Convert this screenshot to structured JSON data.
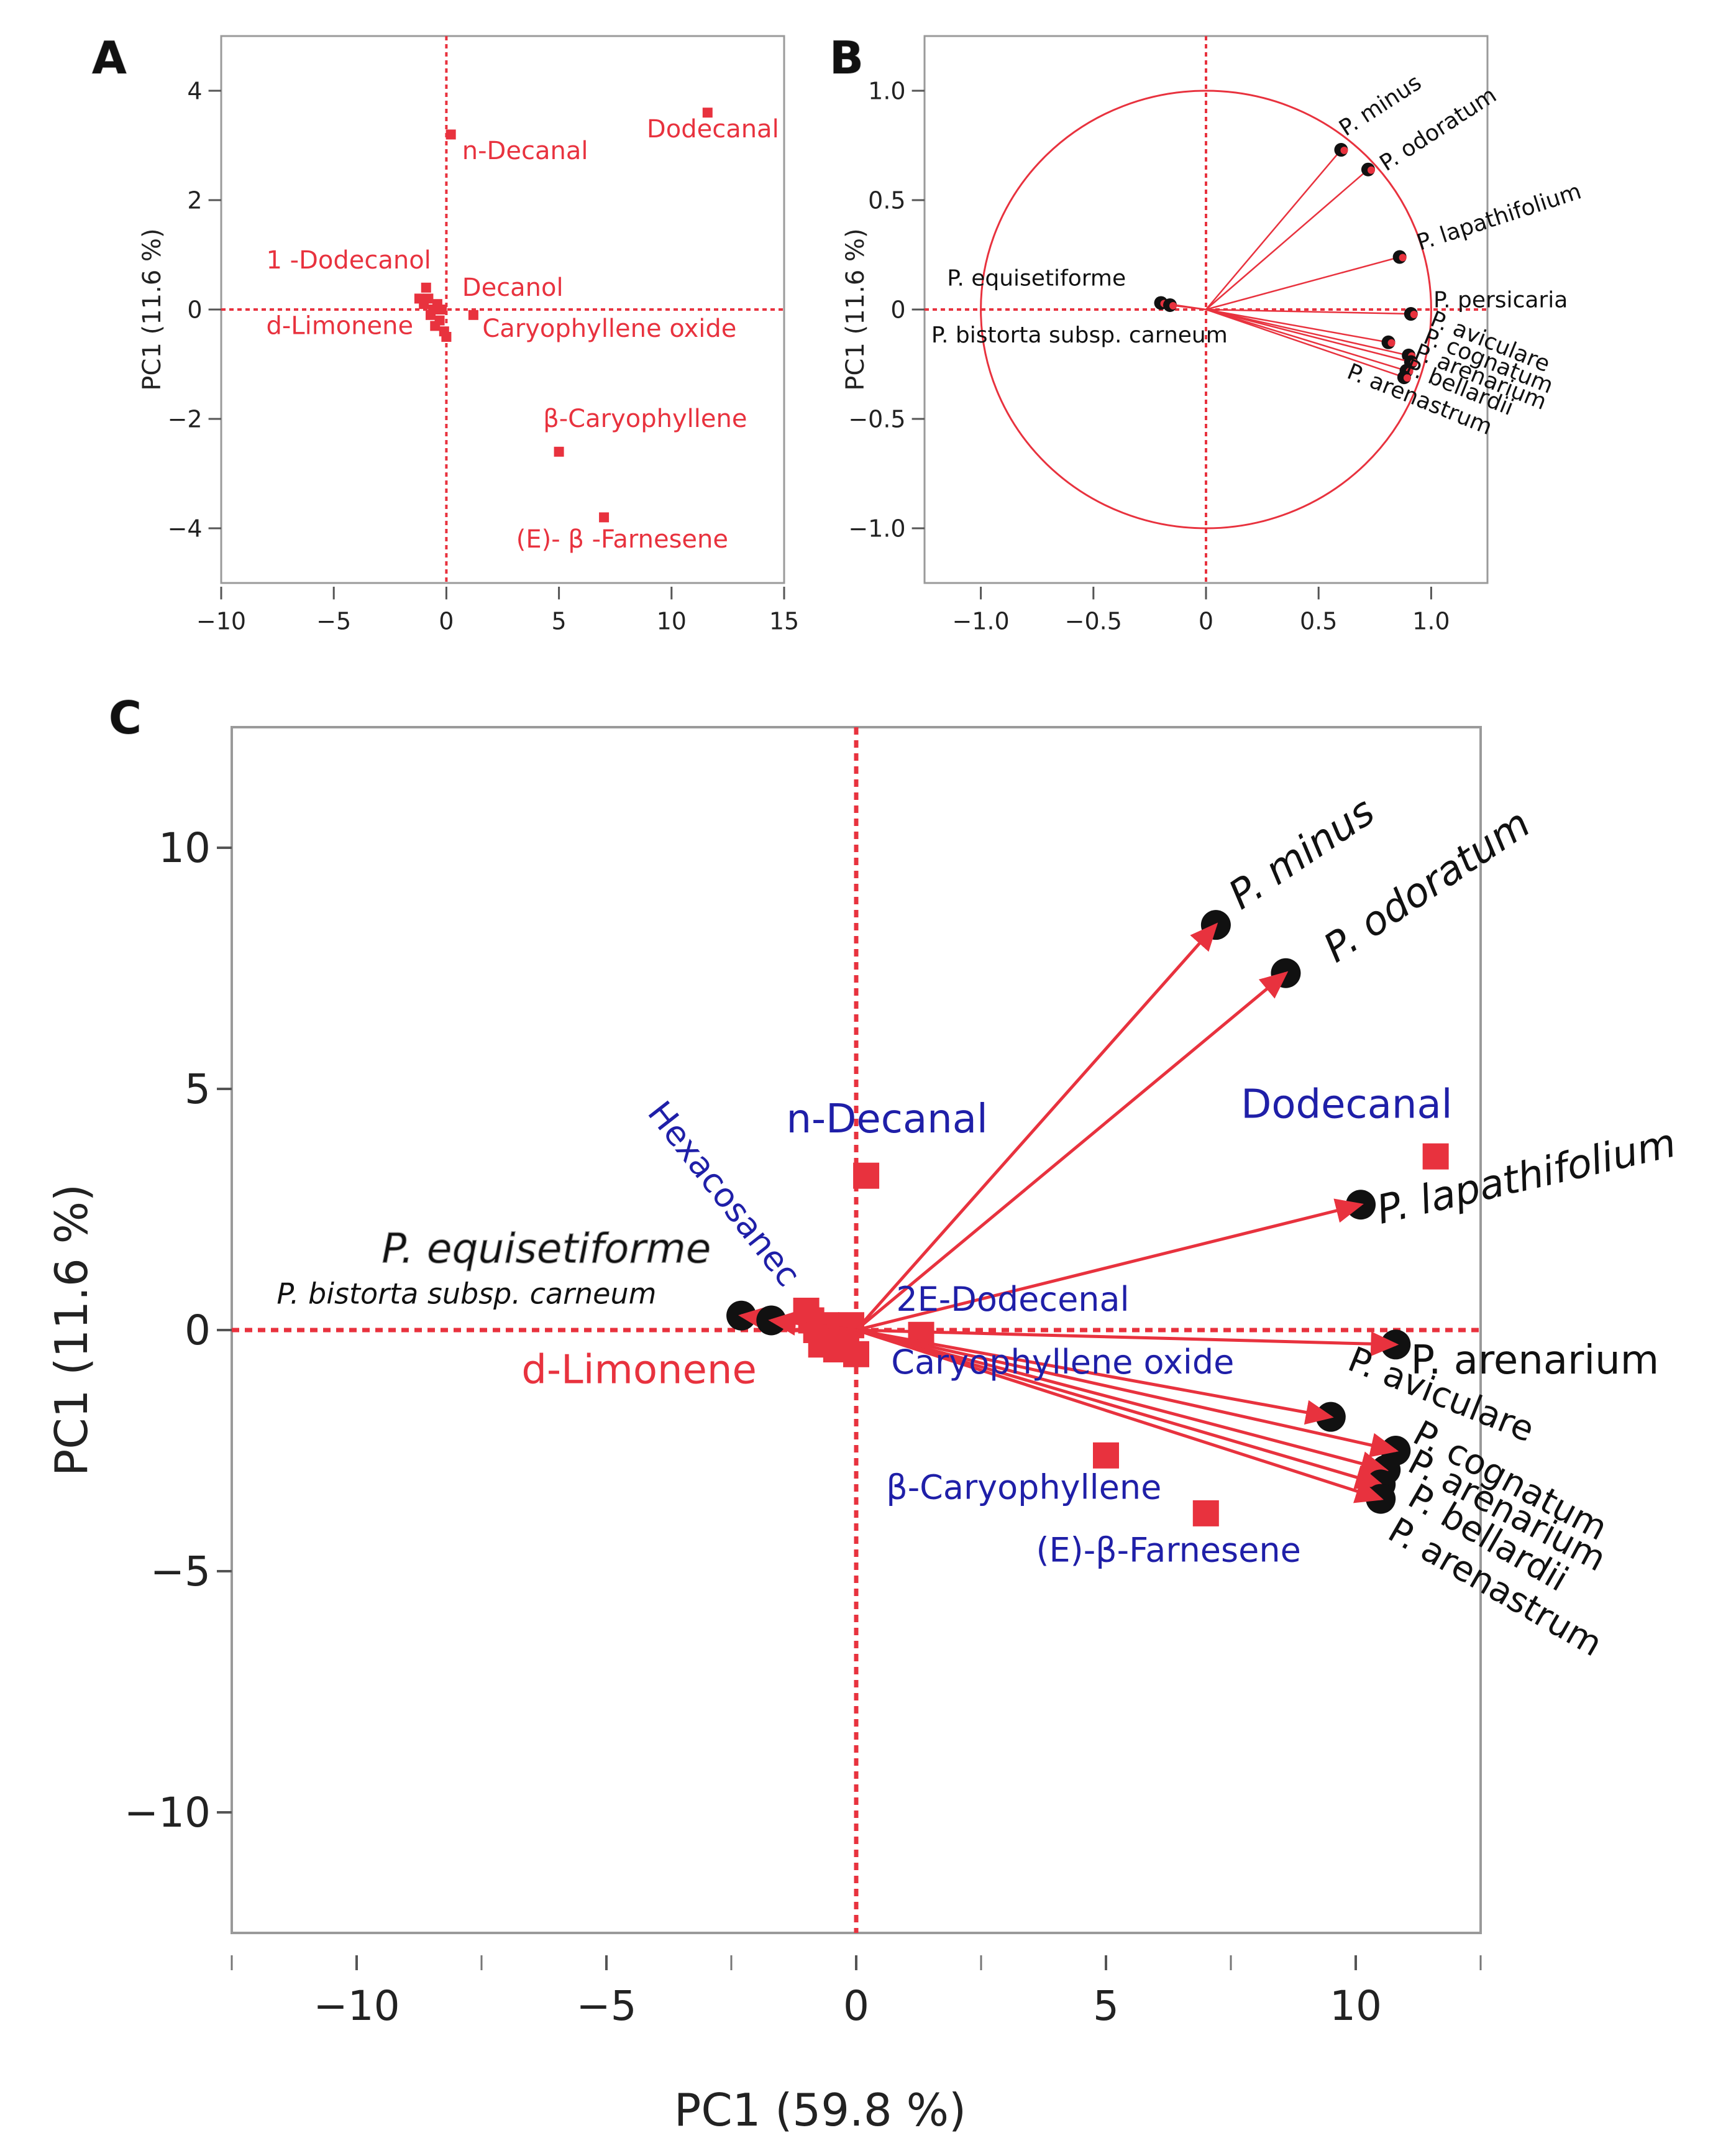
{
  "colors": {
    "accent": "#e8323e",
    "blue": "#1f1fa8",
    "black": "#111111",
    "frame": "#9a9a9a"
  },
  "panels": {
    "A": {
      "letter": "A",
      "ylabel": "PC1  (11.6 %)"
    },
    "B": {
      "letter": "B",
      "ylabel": "PC1  (11.6 %)"
    },
    "C": {
      "letter": "C",
      "ylabel": "PC1  (11.6 %)",
      "xlabel": "PC1  (59.8 %)"
    }
  },
  "chart_data": [
    {
      "id": "A",
      "type": "scatter",
      "title": "",
      "xlabel": "",
      "ylabel": "PC1  (11.6 %)",
      "xlim": [
        -10,
        15
      ],
      "ylim": [
        -5,
        5
      ],
      "xticks": [
        -10,
        -5,
        0,
        5,
        10,
        15
      ],
      "xtick_labels": [
        "−10",
        "−5",
        "0",
        "5",
        "10",
        "15"
      ],
      "yticks": [
        -4,
        -2,
        0,
        2,
        4
      ],
      "ytick_labels": [
        "−4",
        "−2",
        "0",
        "2",
        "4"
      ],
      "points": [
        {
          "label": "Dodecanal",
          "x": 11.6,
          "y": 3.6
        },
        {
          "label": "n-Decanal",
          "x": 0.2,
          "y": 3.2
        },
        {
          "label": "β-Caryophyllene",
          "x": 5.0,
          "y": -2.6
        },
        {
          "label": "(E)- β -Farnesene",
          "x": 7.0,
          "y": -3.8
        },
        {
          "label": "Caryophyllene oxide",
          "x": 1.2,
          "y": -0.1
        },
        {
          "label": "",
          "x": -1.2,
          "y": 0.2
        },
        {
          "label": "",
          "x": -1.0,
          "y": 0.1
        },
        {
          "label": "",
          "x": -0.9,
          "y": 0.4
        },
        {
          "label": "",
          "x": -0.8,
          "y": 0.2
        },
        {
          "label": "",
          "x": -0.7,
          "y": -0.1
        },
        {
          "label": "",
          "x": -0.6,
          "y": 0.0
        },
        {
          "label": "",
          "x": -0.5,
          "y": -0.3
        },
        {
          "label": "",
          "x": -0.4,
          "y": 0.1
        },
        {
          "label": "",
          "x": -0.3,
          "y": -0.2
        },
        {
          "label": "",
          "x": -0.2,
          "y": 0.0
        },
        {
          "label": "",
          "x": -0.1,
          "y": -0.4
        },
        {
          "label": "",
          "x": 0.0,
          "y": -0.5
        }
      ],
      "labels": [
        {
          "text": "Dodecanal",
          "x": 8.9,
          "y": 3.15
        },
        {
          "text": "n-Decanal",
          "x": 0.7,
          "y": 2.75
        },
        {
          "text": "1 -Dodecanol",
          "x": -8.0,
          "y": 0.75
        },
        {
          "text": "Decanol",
          "x": 0.7,
          "y": 0.25
        },
        {
          "text": "d-Limonene",
          "x": -8.0,
          "y": -0.45
        },
        {
          "text": "Caryophyllene oxide",
          "x": 1.6,
          "y": -0.5
        },
        {
          "text": "β-Caryophyllene",
          "x": 4.3,
          "y": -2.15
        },
        {
          "text": "(E)- β -Farnesene",
          "x": 3.1,
          "y": -4.35
        }
      ]
    },
    {
      "id": "B",
      "type": "scatter",
      "subtype": "loadings",
      "title": "",
      "xlabel": "",
      "ylabel": "PC1  (11.6 %)",
      "xlim": [
        -1.25,
        1.25
      ],
      "ylim": [
        -1.25,
        1.25
      ],
      "xticks": [
        -1.0,
        -0.5,
        0,
        0.5,
        1.0
      ],
      "xtick_labels": [
        "−1.0",
        "−0.5",
        "0",
        "0.5",
        "1.0"
      ],
      "yticks": [
        -1.0,
        -0.5,
        0,
        0.5,
        1.0
      ],
      "ytick_labels": [
        "−1.0",
        "−0.5",
        "0",
        "0.5",
        "1.0"
      ],
      "circle_radius": 1.0,
      "loadings": [
        {
          "label": "P. minus",
          "x": 0.6,
          "y": 0.73
        },
        {
          "label": "P. odoratum",
          "x": 0.72,
          "y": 0.64
        },
        {
          "label": "P. lapathifolium",
          "x": 0.86,
          "y": 0.24
        },
        {
          "label": "P. persicaria",
          "x": 0.91,
          "y": -0.02
        },
        {
          "label": "P. aviculare",
          "x": 0.81,
          "y": -0.15
        },
        {
          "label": "P. cognatum",
          "x": 0.9,
          "y": -0.21
        },
        {
          "label": "P. arenarium",
          "x": 0.91,
          "y": -0.24
        },
        {
          "label": "P. bellardii",
          "x": 0.89,
          "y": -0.28
        },
        {
          "label": "P. arenastrum",
          "x": 0.88,
          "y": -0.31
        },
        {
          "label": "P. equisetiforme",
          "x": -0.2,
          "y": 0.03
        },
        {
          "label": "P. bistorta subsp. carneum",
          "x": -0.16,
          "y": 0.02
        }
      ],
      "labels": [
        {
          "text": "P. minus",
          "x": 0.62,
          "y": 0.79,
          "angle": -33
        },
        {
          "text": "P. odoratum",
          "x": 0.8,
          "y": 0.63,
          "angle": -33
        },
        {
          "text": "P. lapathifolium",
          "x": 0.95,
          "y": 0.27,
          "angle": -18
        },
        {
          "text": "P. persicaria",
          "x": 1.01,
          "y": 0.01,
          "angle": 0
        },
        {
          "text": "P. aviculare",
          "x": 0.99,
          "y": -0.07,
          "angle": 22
        },
        {
          "text": "P. cognatum",
          "x": 0.96,
          "y": -0.15,
          "angle": 22
        },
        {
          "text": "P. arenarium",
          "x": 0.92,
          "y": -0.22,
          "angle": 22
        },
        {
          "text": "P. bellardii",
          "x": 0.88,
          "y": -0.29,
          "angle": 22
        },
        {
          "text": "P. arenastrum",
          "x": 0.62,
          "y": -0.31,
          "angle": 22
        },
        {
          "text": "P. equisetiforme",
          "x": -1.15,
          "y": 0.11,
          "angle": 0
        },
        {
          "text": "P. bistorta subsp. carneum",
          "x": -1.22,
          "y": -0.15,
          "angle": 0
        }
      ]
    },
    {
      "id": "C",
      "type": "scatter",
      "subtype": "biplot",
      "title": "",
      "xlabel": "PC1  (59.8 %)",
      "ylabel": "PC1  (11.6 %)",
      "xlim": [
        -12.5,
        12.5
      ],
      "ylim": [
        -12.5,
        12.5
      ],
      "xticks": [
        -10,
        -5,
        0,
        5,
        10
      ],
      "xtick_labels": [
        "−10",
        "−5",
        "0",
        "5",
        "10"
      ],
      "minor_xticks": [
        -12.5,
        -7.5,
        -2.5,
        2.5,
        7.5,
        12.5
      ],
      "yticks": [
        -10,
        -5,
        0,
        5,
        10
      ],
      "ytick_labels": [
        "−10",
        "−5",
        "0",
        "5",
        "10"
      ],
      "loadings": [
        {
          "label": "P. minus",
          "x": 7.2,
          "y": 8.4
        },
        {
          "label": "P. odoratum",
          "x": 8.6,
          "y": 7.4
        },
        {
          "label": "P. lapathifolium",
          "x": 10.1,
          "y": 2.6
        },
        {
          "label": "P. arenarium",
          "x": 10.8,
          "y": -0.3
        },
        {
          "label": "P. aviculare",
          "x": 9.5,
          "y": -1.8
        },
        {
          "label": "P. cognatum",
          "x": 10.8,
          "y": -2.5
        },
        {
          "label": "P. arenarium",
          "x": 10.6,
          "y": -2.9
        },
        {
          "label": "P. bellardii",
          "x": 10.5,
          "y": -3.2
        },
        {
          "label": "P. arenastrum",
          "x": 10.5,
          "y": -3.5
        },
        {
          "label": "P. equisetiforme",
          "x": -2.3,
          "y": 0.3
        },
        {
          "label": "P. bistorta subsp. carneum",
          "x": -1.7,
          "y": 0.2
        }
      ],
      "scores": [
        {
          "label": "Dodecanal",
          "x": 11.6,
          "y": 3.6
        },
        {
          "label": "n-Decanal",
          "x": 0.2,
          "y": 3.2
        },
        {
          "label": "β-Caryophyllene",
          "x": 5.0,
          "y": -2.6
        },
        {
          "label": "(E)-β-Farnesene",
          "x": 7.0,
          "y": -3.8
        },
        {
          "label": "2E-Dodecenal",
          "x": 1.3,
          "y": -0.1
        },
        {
          "label": "",
          "x": -1.0,
          "y": 0.4
        },
        {
          "label": "",
          "x": -0.9,
          "y": 0.2
        },
        {
          "label": "",
          "x": -0.8,
          "y": 0.0
        },
        {
          "label": "",
          "x": -0.7,
          "y": -0.3
        },
        {
          "label": "",
          "x": -0.6,
          "y": 0.1
        },
        {
          "label": "",
          "x": -0.5,
          "y": -0.1
        },
        {
          "label": "",
          "x": -0.4,
          "y": -0.4
        },
        {
          "label": "",
          "x": -0.3,
          "y": 0.0
        },
        {
          "label": "",
          "x": -0.2,
          "y": -0.2
        },
        {
          "label": "",
          "x": -0.1,
          "y": 0.1
        },
        {
          "label": "",
          "x": 0.0,
          "y": -0.5
        }
      ],
      "labels": [
        {
          "text": "n-Decanal",
          "x": -1.4,
          "y": 4.1,
          "color": "blue",
          "size": 64,
          "angle": 0,
          "style": "normal",
          "weight": "normal"
        },
        {
          "text": "Dodecanal",
          "x": 7.7,
          "y": 4.4,
          "color": "blue",
          "size": 64,
          "angle": 0,
          "style": "normal",
          "weight": "normal"
        },
        {
          "text": "Hexacosanec",
          "x": -4.2,
          "y": 4.5,
          "color": "blue",
          "size": 54,
          "angle": 52,
          "style": "normal",
          "weight": "normal"
        },
        {
          "text": "2E-Dodecenal",
          "x": 0.8,
          "y": 0.4,
          "color": "blue",
          "size": 54,
          "angle": 0,
          "style": "normal",
          "weight": "normal"
        },
        {
          "text": "Caryophyllene oxide",
          "x": 0.7,
          "y": -0.9,
          "color": "blue",
          "size": 54,
          "angle": 0,
          "style": "normal",
          "weight": "normal"
        },
        {
          "text": "β-Caryophyllene",
          "x": 0.6,
          "y": -3.5,
          "color": "blue",
          "size": 54,
          "angle": 0,
          "style": "normal",
          "weight": "normal"
        },
        {
          "text": "(E)-β-Farnesene",
          "x": 3.6,
          "y": -4.8,
          "color": "blue",
          "size": 54,
          "angle": 0,
          "style": "normal",
          "weight": "normal"
        },
        {
          "text": "d-Limonene",
          "x": -6.7,
          "y": -1.1,
          "color": "accent",
          "size": 64,
          "angle": 0,
          "style": "normal",
          "weight": "normal"
        },
        {
          "text": "P. equisetiforme",
          "x": -9.5,
          "y": 1.4,
          "color": "black",
          "size": 66,
          "angle": 0,
          "style": "italic",
          "weight": "normal"
        },
        {
          "text": "P. bistorta subsp. carneum",
          "x": -11.6,
          "y": 0.55,
          "color": "black",
          "size": 46,
          "angle": 0,
          "style": "italic",
          "weight": "normal"
        },
        {
          "text": "P. minus",
          "x": 7.7,
          "y": 8.7,
          "color": "black",
          "size": 64,
          "angle": -34,
          "style": "italic",
          "weight": "normal"
        },
        {
          "text": "P. odoratum",
          "x": 9.6,
          "y": 7.6,
          "color": "black",
          "size": 64,
          "angle": -34,
          "style": "italic",
          "weight": "normal"
        },
        {
          "text": "P. lapathifolium",
          "x": 10.5,
          "y": 2.2,
          "color": "black",
          "size": 64,
          "angle": -13,
          "style": "italic",
          "weight": "normal"
        },
        {
          "text": "P. arenarium",
          "x": 11.1,
          "y": -0.9,
          "color": "black",
          "size": 64,
          "angle": 0,
          "style": "normal",
          "weight": "normal"
        },
        {
          "text": "P. aviculare",
          "x": 9.8,
          "y": -0.8,
          "color": "black",
          "size": 56,
          "angle": 22,
          "style": "normal",
          "weight": "normal"
        },
        {
          "text": "P. cognatum",
          "x": 11.1,
          "y": -2.3,
          "color": "black",
          "size": 56,
          "angle": 28,
          "style": "normal",
          "weight": "normal"
        },
        {
          "text": "P. arenarium",
          "x": 11.0,
          "y": -2.9,
          "color": "black",
          "size": 56,
          "angle": 28,
          "style": "normal",
          "weight": "normal"
        },
        {
          "text": "P. bellardii",
          "x": 11.0,
          "y": -3.6,
          "color": "black",
          "size": 56,
          "angle": 30,
          "style": "normal",
          "weight": "normal"
        },
        {
          "text": "P. arenastrum",
          "x": 10.6,
          "y": -4.3,
          "color": "black",
          "size": 56,
          "angle": 30,
          "style": "normal",
          "weight": "normal"
        }
      ]
    }
  ]
}
